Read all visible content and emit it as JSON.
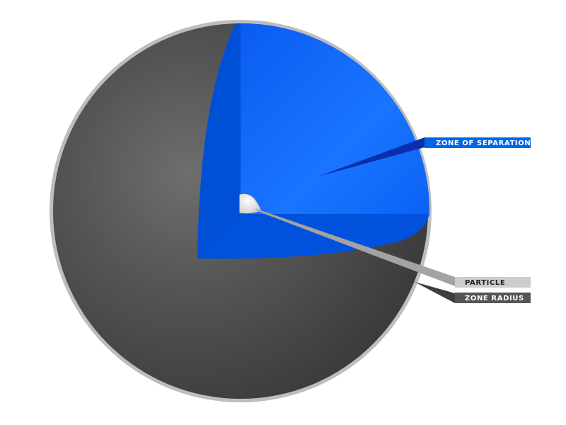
{
  "diagram": {
    "labels": {
      "zone_of_separation": "ZONE OF SEPARATION",
      "particle": "PARTICLE",
      "zone_radius": "ZONE RADIUS"
    },
    "colors": {
      "sphere_outline": "#bdbdbd",
      "sphere_dark": "#3c3c3c",
      "sphere_mid": "#555555",
      "sphere_light": "#6a6a6a",
      "cutaway_blue": "#0060e8",
      "cutaway_blue_light": "#1976ff",
      "cutaway_blue_dark": "#0048c8",
      "label_separation_bg": "#0066e6",
      "label_separation_pointer": "#0a34b4",
      "label_particle_bg": "#cccccc",
      "label_particle_pointer": "#9e9e9e",
      "label_radius_bg": "#555555",
      "label_radius_pointer": "#3c3c3c",
      "particle_fill": "#f4f4f4"
    }
  }
}
